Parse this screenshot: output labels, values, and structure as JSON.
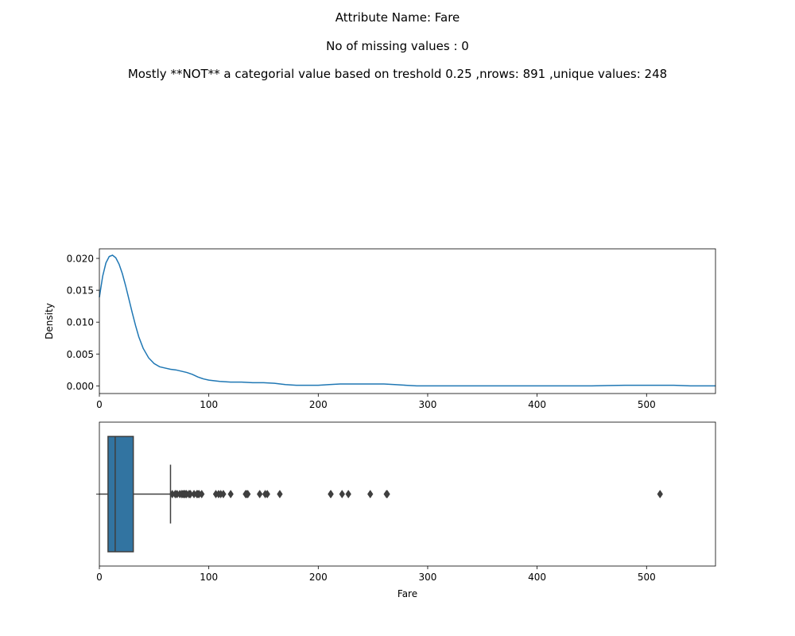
{
  "header": {
    "line1": "Attribute Name: Fare",
    "line2": "No of missing values : 0",
    "line3": "Mostly **NOT** a categorial value based on treshold 0.25 ,nrows: 891 ,unique values: 248"
  },
  "colors": {
    "line": "#1f77b4",
    "box_fill": "#3274a1",
    "box_edge": "#3f3f3f",
    "axes": "#000000"
  },
  "chart_data": [
    {
      "type": "line",
      "title": "",
      "xlabel": "",
      "ylabel": "Density",
      "xlim": [
        0,
        563
      ],
      "ylim": [
        -0.0012,
        0.0215
      ],
      "xticks": [
        "0",
        "100",
        "200",
        "300",
        "400",
        "500"
      ],
      "xtick_values": [
        0,
        100,
        200,
        300,
        400,
        500
      ],
      "yticks": [
        "0.000",
        "0.005",
        "0.010",
        "0.015",
        "0.020"
      ],
      "ytick_values": [
        0,
        0.005,
        0.01,
        0.015,
        0.02
      ],
      "grid": false,
      "series": [
        {
          "x": [
            0,
            3,
            6,
            9,
            12,
            15,
            18,
            21,
            24,
            27,
            30,
            33,
            36,
            40,
            45,
            50,
            55,
            60,
            65,
            70,
            75,
            80,
            85,
            90,
            95,
            100,
            110,
            120,
            130,
            140,
            150,
            160,
            170,
            180,
            190,
            200,
            210,
            220,
            230,
            240,
            250,
            260,
            270,
            280,
            290,
            300,
            350,
            400,
            450,
            480,
            500,
            512,
            525,
            540,
            563
          ],
          "y": [
            0.0139,
            0.0172,
            0.0193,
            0.0203,
            0.0205,
            0.0201,
            0.0191,
            0.0176,
            0.0157,
            0.0136,
            0.0115,
            0.0095,
            0.0077,
            0.0059,
            0.0044,
            0.0035,
            0.003,
            0.0028,
            0.0026,
            0.0025,
            0.0023,
            0.0021,
            0.0018,
            0.0014,
            0.0011,
            0.0009,
            0.0007,
            0.0006,
            0.0006,
            0.0005,
            0.0005,
            0.0004,
            0.0002,
            0.0001,
            0.0001,
            0.0001,
            0.0002,
            0.0003,
            0.0003,
            0.0003,
            0.0003,
            0.0003,
            0.0002,
            0.0001,
            0.0,
            0.0,
            0.0,
            0.0,
            0.0,
            0.0001,
            0.0001,
            0.0001,
            0.0001,
            0.0,
            0.0
          ]
        }
      ]
    },
    {
      "type": "box",
      "title": "",
      "xlabel": "Fare",
      "ylabel": "",
      "xlim": [
        0,
        563
      ],
      "xticks": [
        "0",
        "100",
        "200",
        "300",
        "400",
        "500"
      ],
      "xtick_values": [
        0,
        100,
        200,
        300,
        400,
        500
      ],
      "grid": false,
      "whisker_low": 0,
      "q1": 7.91,
      "median": 14.45,
      "q3": 31.0,
      "whisker_high": 65.0,
      "outliers": [
        66.6,
        69.3,
        69.55,
        71.0,
        73.5,
        75.25,
        76.29,
        77.29,
        77.96,
        79.2,
        79.65,
        81.86,
        82.17,
        83.16,
        86.5,
        89.1,
        90.0,
        91.08,
        93.5,
        106.43,
        108.9,
        110.88,
        113.28,
        120.0,
        133.65,
        134.5,
        135.63,
        146.52,
        151.55,
        153.46,
        164.87,
        211.34,
        211.5,
        221.78,
        227.53,
        247.52,
        262.38,
        263.0,
        512.33
      ]
    }
  ]
}
